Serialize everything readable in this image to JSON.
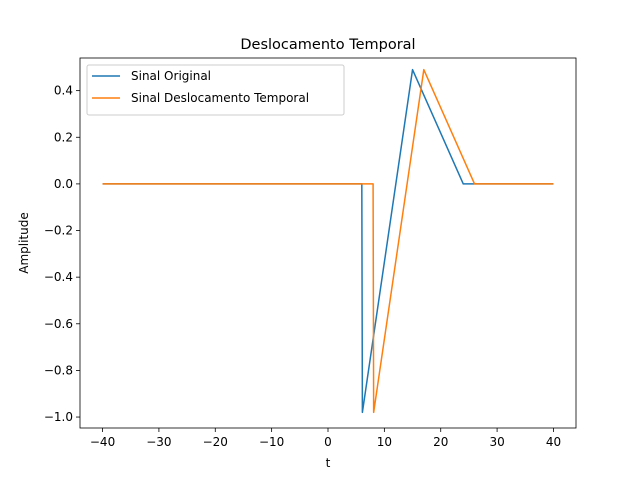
{
  "chart_data": {
    "type": "line",
    "title": "Deslocamento Temporal",
    "xlabel": "t",
    "ylabel": "Amplitude",
    "xlim": [
      -44,
      44
    ],
    "ylim": [
      -1.047,
      0.54
    ],
    "xticks": [
      -40,
      -30,
      -20,
      -10,
      0,
      10,
      20,
      30,
      40
    ],
    "xtick_labels": [
      "−40",
      "−30",
      "−20",
      "−10",
      "0",
      "10",
      "20",
      "30",
      "40"
    ],
    "yticks": [
      -1.0,
      -0.8,
      -0.6,
      -0.4,
      -0.2,
      0.0,
      0.2,
      0.4
    ],
    "ytick_labels": [
      "−1.0",
      "−0.8",
      "−0.6",
      "−0.4",
      "−0.2",
      "0.0",
      "0.2",
      "0.4"
    ],
    "grid": false,
    "legend_position": "top-left",
    "series": [
      {
        "name": "Sinal Original",
        "color": "#1f77b4",
        "points": [
          [
            -40,
            0
          ],
          [
            6,
            0
          ],
          [
            6.1,
            -0.98
          ],
          [
            15,
            0.49
          ],
          [
            24,
            0
          ],
          [
            40,
            0
          ]
        ]
      },
      {
        "name": "Sinal Deslocamento Temporal",
        "color": "#ff7f0e",
        "points": [
          [
            -40,
            0
          ],
          [
            8,
            0
          ],
          [
            8.1,
            -0.98
          ],
          [
            17,
            0.49
          ],
          [
            26,
            0
          ],
          [
            40,
            0
          ]
        ]
      }
    ]
  }
}
